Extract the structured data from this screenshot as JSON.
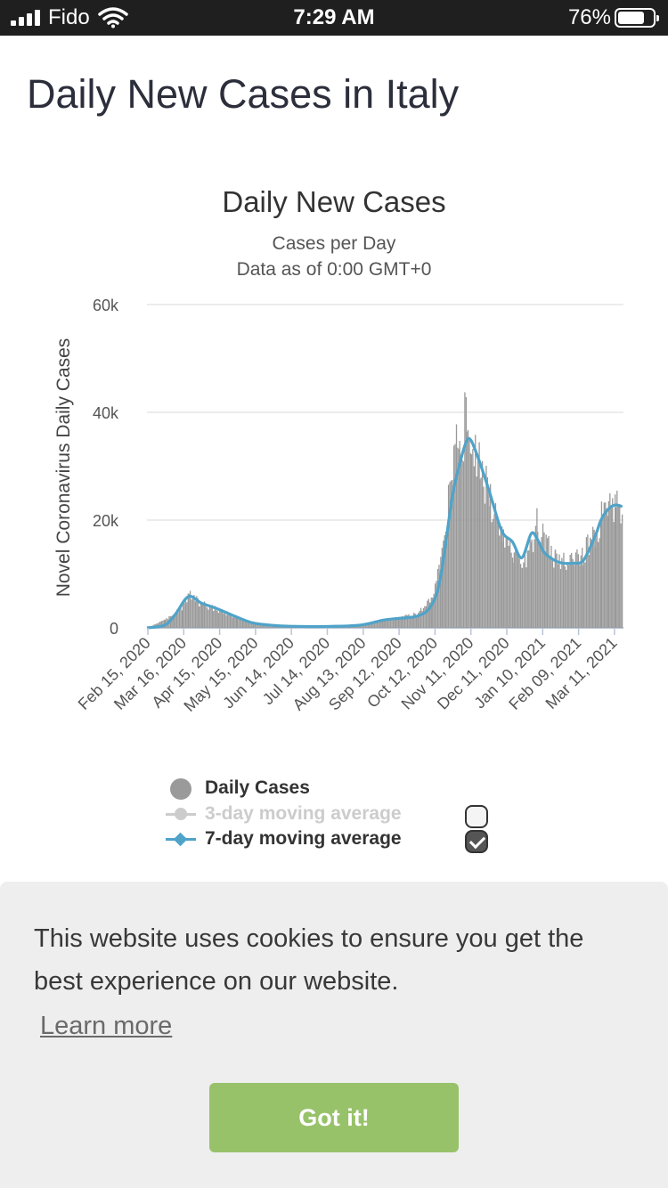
{
  "status_bar": {
    "carrier": "Fido",
    "time": "7:29 AM",
    "battery_percent": "76%",
    "battery_level": 0.76,
    "icons": [
      "signal-icon",
      "wifi-icon",
      "battery-icon"
    ]
  },
  "page": {
    "title": "Daily New Cases in Italy"
  },
  "chart_data": {
    "type": "bar",
    "title": "Daily New Cases",
    "subtitle": "Cases per Day",
    "subtitle2": "Data as of 0:00 GMT+0",
    "ylabel": "Novel Coronavirus Daily Cases",
    "xlabel": "",
    "ylim": [
      0,
      60000
    ],
    "yticks": [
      {
        "value": 0,
        "label": "0"
      },
      {
        "value": 20000,
        "label": "20k"
      },
      {
        "value": 40000,
        "label": "40k"
      },
      {
        "value": 60000,
        "label": "60k"
      }
    ],
    "xticks": [
      "Feb 15, 2020",
      "Mar 16, 2020",
      "Apr 15, 2020",
      "May 15, 2020",
      "Jun 14, 2020",
      "Jul 14, 2020",
      "Aug 13, 2020",
      "Sep 12, 2020",
      "Oct 12, 2020",
      "Nov 11, 2020",
      "Dec 11, 2020",
      "Jan 10, 2021",
      "Feb 09, 2021",
      "Mar 11, 2021"
    ],
    "grid": true,
    "legend_position": "bottom",
    "colors": {
      "bars": "#999999",
      "ma3": "#cccccc",
      "ma7": "#4fa3c9"
    },
    "series": [
      {
        "name": "Daily Cases",
        "type": "bar",
        "x": [
          "2020-02-15",
          "2020-03-01",
          "2020-03-16",
          "2020-03-21",
          "2020-04-01",
          "2020-04-15",
          "2020-05-01",
          "2020-05-15",
          "2020-06-01",
          "2020-06-14",
          "2020-07-14",
          "2020-08-13",
          "2020-09-01",
          "2020-09-12",
          "2020-10-01",
          "2020-10-12",
          "2020-10-20",
          "2020-10-30",
          "2020-11-05",
          "2020-11-11",
          "2020-11-15",
          "2020-11-22",
          "2020-12-01",
          "2020-12-11",
          "2020-12-20",
          "2020-12-28",
          "2021-01-05",
          "2021-01-10",
          "2021-01-16",
          "2021-01-25",
          "2021-02-01",
          "2021-02-09",
          "2021-02-18",
          "2021-02-28",
          "2021-03-05",
          "2021-03-11",
          "2021-03-17",
          "2021-03-23"
        ],
        "values": [
          0,
          1500,
          3800,
          6000,
          4500,
          3200,
          1800,
          800,
          400,
          300,
          250,
          600,
          1500,
          1700,
          2600,
          5500,
          12000,
          30000,
          36000,
          38000,
          37000,
          30000,
          24000,
          17000,
          14000,
          11000,
          15000,
          20000,
          16000,
          13000,
          12000,
          12500,
          13500,
          18000,
          21000,
          24000,
          23000,
          23500
        ]
      },
      {
        "name": "3-day moving average",
        "type": "line",
        "visible": false,
        "values": []
      },
      {
        "name": "7-day moving average",
        "type": "line",
        "visible": true,
        "x": [
          "2020-02-15",
          "2020-03-01",
          "2020-03-10",
          "2020-03-21",
          "2020-04-01",
          "2020-04-15",
          "2020-05-01",
          "2020-05-15",
          "2020-06-01",
          "2020-06-14",
          "2020-07-14",
          "2020-08-13",
          "2020-09-01",
          "2020-09-12",
          "2020-10-01",
          "2020-10-12",
          "2020-10-20",
          "2020-10-30",
          "2020-11-05",
          "2020-11-11",
          "2020-11-15",
          "2020-11-22",
          "2020-12-01",
          "2020-12-11",
          "2020-12-20",
          "2020-12-28",
          "2021-01-05",
          "2021-01-10",
          "2021-01-16",
          "2021-01-25",
          "2021-02-01",
          "2021-02-09",
          "2021-02-18",
          "2021-02-28",
          "2021-03-05",
          "2021-03-11",
          "2021-03-17",
          "2021-03-23"
        ],
        "values": [
          0,
          500,
          2500,
          5800,
          4600,
          3500,
          2000,
          900,
          450,
          300,
          250,
          500,
          1400,
          1700,
          2200,
          4000,
          9000,
          24000,
          30000,
          34500,
          34800,
          31000,
          25000,
          18000,
          16000,
          13000,
          17500,
          16500,
          14000,
          12500,
          12000,
          12000,
          12500,
          17000,
          20000,
          22000,
          22800,
          22500
        ]
      }
    ]
  },
  "legend": {
    "items": [
      {
        "label": "Daily Cases",
        "checked": null
      },
      {
        "label": "3-day moving average",
        "checked": false
      },
      {
        "label": "7-day moving average",
        "checked": true
      }
    ]
  },
  "cookie": {
    "message": "This website uses cookies to ensure you get the best experience on our website.",
    "learn_more": "Learn more",
    "button": "Got it!"
  }
}
